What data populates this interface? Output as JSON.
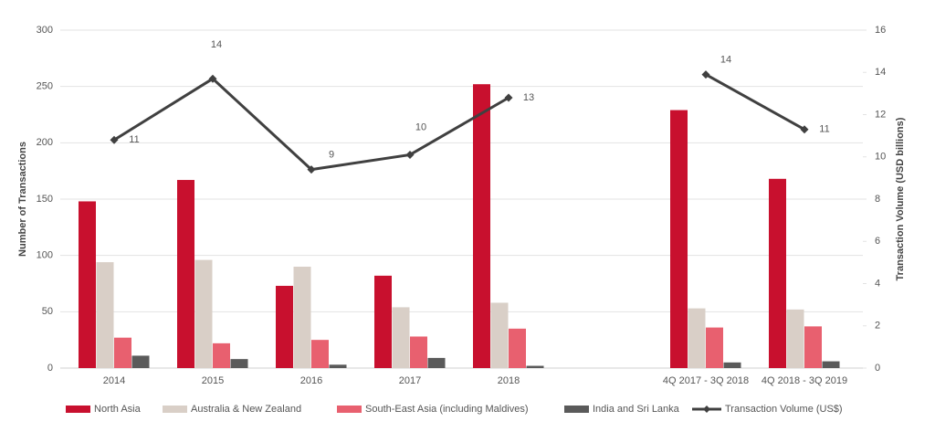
{
  "chart_data": {
    "type": "bar-line",
    "categories": [
      "2014",
      "2015",
      "2016",
      "2017",
      "2018",
      null,
      "4Q 2017 - 3Q 2018",
      "4Q 2018 - 3Q 2019"
    ],
    "y_label": "Number of Transactions",
    "y2_label": "Transaction Volume (USD billions)",
    "ylim": [
      0,
      300
    ],
    "yticks": [
      0,
      50,
      100,
      150,
      200,
      250,
      300
    ],
    "y2lim": [
      0,
      16
    ],
    "y2ticks": [
      0,
      2,
      4,
      6,
      8,
      10,
      12,
      14,
      16
    ],
    "grid": true,
    "legend": "bottom",
    "series": [
      {
        "name": "North Asia",
        "color": "#c8102e",
        "values": [
          148,
          167,
          73,
          82,
          252,
          null,
          229,
          168
        ]
      },
      {
        "name": "Australia & New Zealand",
        "color": "#d9cfc7",
        "values": [
          94,
          96,
          90,
          54,
          58,
          null,
          53,
          52
        ]
      },
      {
        "name": "South-East Asia (including Maldives)",
        "color": "#e8606f",
        "values": [
          27,
          22,
          25,
          28,
          35,
          null,
          36,
          37
        ]
      },
      {
        "name": "India and Sri Lanka",
        "color": "#5a5a5a",
        "values": [
          11,
          8,
          3,
          9,
          2,
          null,
          5,
          6
        ]
      },
      {
        "name": "Transaction Volume (US$)",
        "color": "#404040",
        "type": "line",
        "axis": "y2",
        "values": [
          10.8,
          13.7,
          9.4,
          10.1,
          12.8,
          null,
          13.9,
          11.3
        ],
        "value_labels": [
          "11",
          "14",
          "9",
          "10",
          "13",
          null,
          "14",
          "11"
        ]
      }
    ]
  }
}
